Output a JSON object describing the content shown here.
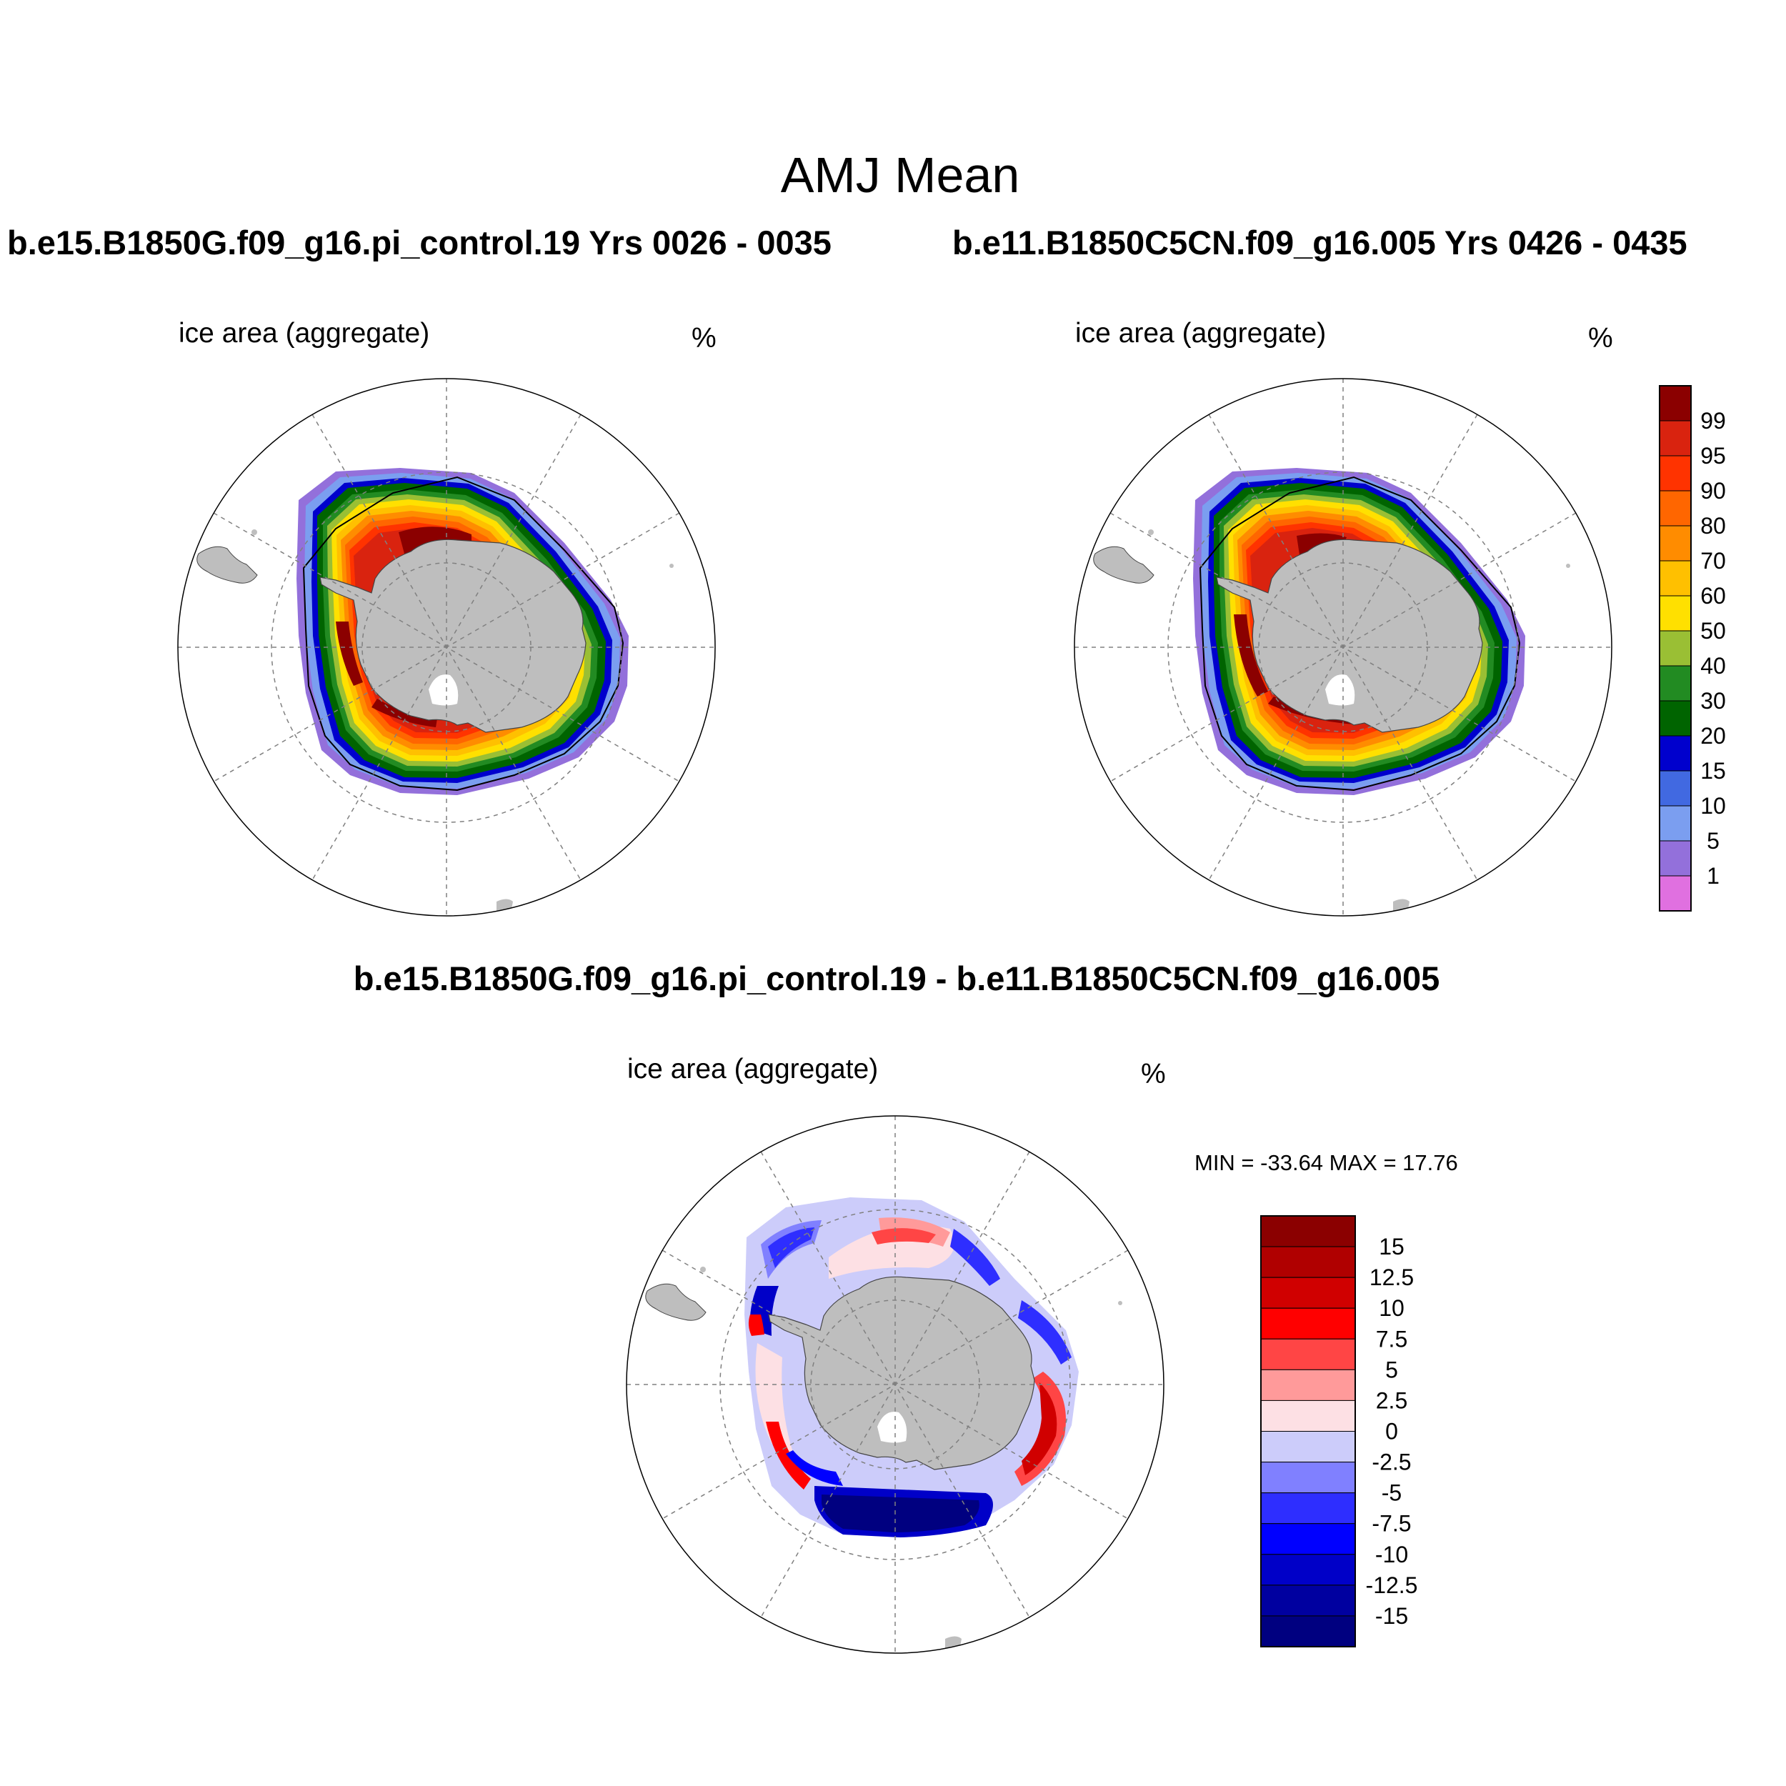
{
  "main_title": "AMJ Mean",
  "panels": [
    {
      "title": "b.e15.B1850G.f09_g16.pi_control.19  Yrs 0026 - 0035",
      "variable": "ice area  (aggregate)",
      "units": "%"
    },
    {
      "title": "b.e11.B1850C5CN.f09_g16.005  Yrs 0426 - 0435",
      "variable": "ice area  (aggregate)",
      "units": "%"
    }
  ],
  "difference": {
    "title": "b.e15.B1850G.f09_g16.pi_control.19 - b.e11.B1850C5CN.f09_g16.005",
    "variable": "ice area  (aggregate)",
    "units": "%",
    "stats": "MIN = -33.64 MAX =  17.76"
  },
  "colorbar_main": {
    "labels": [
      "99",
      "95",
      "90",
      "80",
      "70",
      "60",
      "50",
      "40",
      "30",
      "20",
      "15",
      "10",
      "5",
      "1"
    ],
    "colors": [
      "#8b0000",
      "#d9230f",
      "#ff3300",
      "#ff6600",
      "#ff8c00",
      "#ffc000",
      "#ffe000",
      "#9abf34",
      "#228b22",
      "#006400",
      "#0000cd",
      "#4169e1",
      "#7b9ef0",
      "#9370db",
      "#e070e0"
    ]
  },
  "colorbar_diff": {
    "labels": [
      "15",
      "12.5",
      "10",
      "7.5",
      "5",
      "2.5",
      "0",
      "-2.5",
      "-5",
      "-7.5",
      "-10",
      "-12.5",
      "-15"
    ],
    "colors": [
      "#8b0000",
      "#b00000",
      "#d00000",
      "#ff0000",
      "#ff4545",
      "#ff9a9a",
      "#fde0e4",
      "#ccccfa",
      "#8080ff",
      "#2e2eff",
      "#0000ff",
      "#0000c8",
      "#0000a0",
      "#000080"
    ]
  },
  "colors": {
    "land": "#bebebe",
    "grid": "#808080",
    "ice_edge": "#000000"
  }
}
